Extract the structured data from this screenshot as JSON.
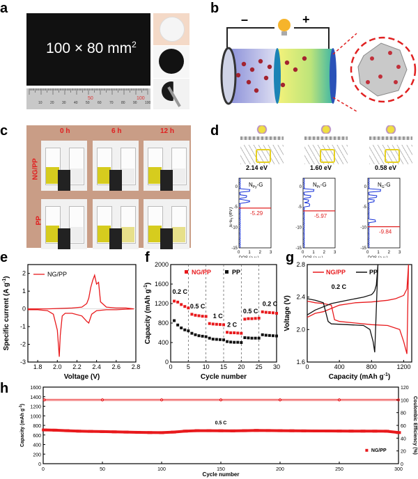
{
  "panels": {
    "a": {
      "label": "a",
      "dimension_text": "100 × 80 mm",
      "dimension_sup": "2",
      "ruler_numbers": [
        "10",
        "20",
        "30",
        "40",
        "50",
        "60",
        "70",
        "80",
        "90",
        "100"
      ],
      "ruler_marks": [
        "50",
        "100"
      ]
    },
    "b": {
      "label": "b",
      "minus": "–",
      "plus": "+"
    },
    "c": {
      "label": "c",
      "times": [
        "0 h",
        "6 h",
        "12 h"
      ],
      "rows": [
        "NG/PP",
        "PP"
      ],
      "colors": {
        "frame": "#c99d86",
        "label": "#e02020",
        "liquid": "#d6cc1e"
      }
    },
    "d": {
      "label": "d",
      "structures": [
        {
          "name": "NPy-G",
          "energy": "2.14 eV",
          "value": "-5.29",
          "sub": "Py"
        },
        {
          "name": "NPr-G",
          "energy": "1.60 eV",
          "value": "-5.97",
          "sub": "Pr"
        },
        {
          "name": "NG-G",
          "energy": "0.58 eV",
          "value": "-9.84",
          "sub": "G"
        }
      ],
      "ylabel": "E-E",
      "ylabel_sub": "f",
      "ylabel_unit": "(eV)",
      "yticks": [
        "0",
        "-5",
        "-10",
        "-15"
      ],
      "xlabel": "DOS (a.u.)",
      "xticks": [
        "0",
        "1",
        "2",
        "3"
      ]
    },
    "e": {
      "label": "e"
    },
    "f": {
      "label": "f"
    },
    "g": {
      "label": "g"
    },
    "h": {
      "label": "h"
    }
  },
  "chart_data": [
    {
      "panel": "e",
      "type": "line",
      "title": "",
      "xlabel": "Voltage (V)",
      "ylabel": "Specific current (A g",
      "ylabel_sup": "-1",
      "xlim": [
        1.7,
        2.8
      ],
      "ylim": [
        -3,
        2.5
      ],
      "xticks": [
        "1.8",
        "2.0",
        "2.2",
        "2.4",
        "2.6",
        "2.8"
      ],
      "yticks": [
        "-3",
        "-2",
        "-1",
        "0",
        "1",
        "2"
      ],
      "legend_position": "top-left",
      "series": [
        {
          "name": "NG/PP",
          "color": "#e8191c",
          "x": [
            1.7,
            1.8,
            1.9,
            1.96,
            2.0,
            2.02,
            2.03,
            2.05,
            2.08,
            2.15,
            2.25,
            2.3,
            2.32,
            2.35,
            2.4,
            2.5,
            2.6,
            2.7,
            2.78,
            2.7,
            2.6,
            2.5,
            2.44,
            2.42,
            2.4,
            2.38,
            2.36,
            2.34,
            2.32,
            2.3,
            2.25,
            2.15,
            2.0,
            1.9,
            1.8,
            1.7
          ],
          "y": [
            -0.05,
            -0.05,
            -0.1,
            -0.3,
            -1.2,
            -2.7,
            -1.5,
            -0.4,
            -0.25,
            -0.25,
            -0.4,
            -0.7,
            -0.8,
            -0.3,
            -0.1,
            -0.05,
            -0.05,
            -0.02,
            0,
            0.05,
            0.05,
            0.1,
            0.4,
            1.5,
            1.4,
            1.9,
            1.6,
            1.2,
            0.6,
            0.3,
            0.1,
            0.05,
            0.02,
            0.0,
            0.0,
            0.0
          ]
        }
      ]
    },
    {
      "panel": "f",
      "type": "scatter",
      "title": "",
      "xlabel": "Cycle number",
      "ylabel": "Capacity (mAh g",
      "ylabel_sup": "-1",
      "xlim": [
        0,
        30
      ],
      "ylim": [
        0,
        2000
      ],
      "xticks": [
        "0",
        "5",
        "10",
        "15",
        "20",
        "25",
        "30"
      ],
      "yticks": [
        "0",
        "200",
        "400",
        "600",
        "800",
        "1000",
        "1200",
        "1400",
        "1600",
        "1800",
        "2000"
      ],
      "legend_position": "top",
      "rate_labels": [
        "0.2 C",
        "0.5 C",
        "1 C",
        "2 C",
        "0.5 C",
        "0.2 C"
      ],
      "series": [
        {
          "name": "NG/PP",
          "color": "#e8191c",
          "x": [
            1,
            2,
            3,
            4,
            5,
            6,
            7,
            8,
            9,
            10,
            11,
            12,
            13,
            14,
            15,
            16,
            17,
            18,
            19,
            20,
            21,
            22,
            23,
            24,
            25,
            26,
            27,
            28,
            29,
            30
          ],
          "y": [
            1250,
            1230,
            1180,
            1140,
            1110,
            980,
            960,
            950,
            940,
            935,
            790,
            780,
            775,
            770,
            765,
            610,
            600,
            600,
            595,
            590,
            880,
            890,
            890,
            895,
            900,
            1030,
            1020,
            1015,
            1010,
            1000
          ]
        },
        {
          "name": "PP",
          "color": "#111111",
          "x": [
            1,
            2,
            3,
            4,
            5,
            6,
            7,
            8,
            9,
            10,
            11,
            12,
            13,
            14,
            15,
            16,
            17,
            18,
            19,
            20,
            21,
            22,
            23,
            24,
            25,
            26,
            27,
            28,
            29,
            30
          ],
          "y": [
            850,
            760,
            700,
            660,
            640,
            590,
            560,
            540,
            530,
            520,
            490,
            470,
            465,
            460,
            455,
            420,
            410,
            405,
            405,
            400,
            500,
            495,
            490,
            490,
            490,
            560,
            550,
            545,
            540,
            535
          ]
        }
      ]
    },
    {
      "panel": "g",
      "type": "line",
      "title": "",
      "xlabel": "Capacity (mAh g",
      "xlabel_sup": "-1",
      "ylabel": "Voltage (V)",
      "xlim": [
        0,
        1300
      ],
      "ylim": [
        1.6,
        2.8
      ],
      "xticks": [
        "0",
        "400",
        "800",
        "1200"
      ],
      "yticks": [
        "1.6",
        "2.0",
        "2.4",
        "2.8"
      ],
      "legend_position": "top",
      "annotation": "0.2 C",
      "series": [
        {
          "name": "NG/PP",
          "color": "#e8191c",
          "x": [
            0,
            100,
            200,
            300,
            340,
            400,
            600,
            800,
            1000,
            1150,
            1200,
            1240,
            1260,
            1240,
            1200,
            1100,
            1000,
            800,
            600,
            400,
            300,
            200,
            100,
            0
          ],
          "y": [
            2.35,
            2.33,
            2.32,
            2.3,
            2.12,
            2.1,
            2.08,
            2.06,
            2.05,
            2.0,
            1.85,
            1.7,
            2.8,
            2.5,
            2.42,
            2.38,
            2.36,
            2.34,
            2.33,
            2.3,
            2.26,
            2.22,
            2.2,
            2.15
          ]
        },
        {
          "name": "PP",
          "color": "#111111",
          "x": [
            0,
            100,
            200,
            260,
            300,
            500,
            700,
            780,
            820,
            840,
            880,
            860,
            840,
            820,
            800,
            700,
            500,
            300,
            200,
            100,
            0
          ],
          "y": [
            2.38,
            2.36,
            2.33,
            2.1,
            2.07,
            2.06,
            2.05,
            2.0,
            1.85,
            1.72,
            2.8,
            2.55,
            2.48,
            2.45,
            2.43,
            2.4,
            2.36,
            2.32,
            2.28,
            2.24,
            2.18
          ]
        }
      ]
    },
    {
      "panel": "h",
      "type": "scatter",
      "title": "",
      "xlabel": "Cycle number",
      "ylabel": "Capacity (mAh g",
      "ylabel_sup": "-1",
      "y2label": "Coulombic Efficiency (%)",
      "xlim": [
        0,
        300
      ],
      "ylim": [
        0,
        1600
      ],
      "y2lim": [
        0,
        120
      ],
      "xticks": [
        "0",
        "50",
        "100",
        "150",
        "200",
        "250",
        "300"
      ],
      "yticks": [
        "0",
        "200",
        "400",
        "600",
        "800",
        "1000",
        "1200",
        "1400",
        "1600"
      ],
      "y2ticks": [
        "0",
        "20",
        "40",
        "60",
        "80",
        "100",
        "120"
      ],
      "annotation": "0.5 C",
      "legend_position": "bottom-right",
      "series": [
        {
          "name": "NG/PP",
          "axis": "left",
          "color": "#e8191c",
          "x": [
            1,
            10,
            20,
            30,
            40,
            50,
            60,
            70,
            80,
            90,
            100,
            110,
            120,
            130,
            140,
            150,
            160,
            170,
            180,
            190,
            200,
            210,
            220,
            230,
            240,
            250,
            260,
            270,
            280,
            290,
            300
          ],
          "y": [
            705,
            700,
            690,
            680,
            675,
            670,
            665,
            660,
            655,
            650,
            648,
            660,
            680,
            690,
            690,
            688,
            685,
            690,
            695,
            692,
            690,
            688,
            685,
            684,
            683,
            682,
            681,
            680,
            679,
            678,
            650
          ]
        },
        {
          "name": "Coulombic efficiency",
          "axis": "right",
          "color": "#e8191c",
          "x": [
            1,
            50,
            100,
            150,
            200,
            250,
            300
          ],
          "y": [
            100,
            100,
            100,
            100,
            100,
            100,
            100
          ]
        }
      ]
    }
  ]
}
